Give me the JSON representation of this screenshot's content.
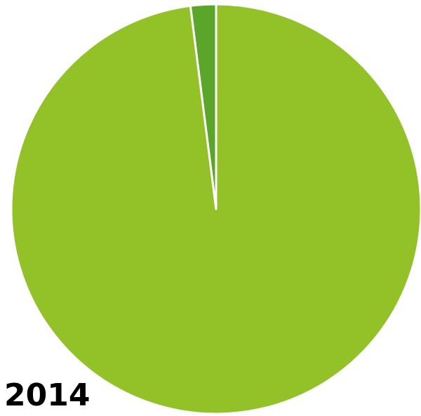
{
  "chart_data": {
    "type": "pie",
    "title": "2014",
    "categories": [
      null,
      null
    ],
    "values": [
      98,
      2
    ],
    "colors": [
      "#92c228",
      "#5aa52a"
    ]
  }
}
